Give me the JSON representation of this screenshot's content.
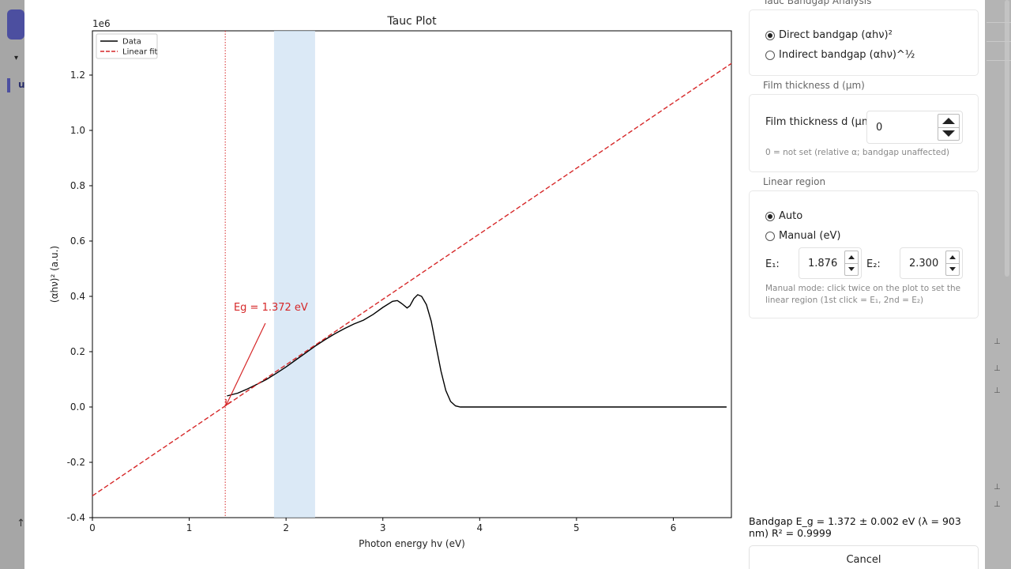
{
  "background": {
    "tab_text": "u",
    "caret": "▾",
    "up_arrow": "↑",
    "right_ticks": [
      "⊥",
      "⊥",
      "⊥",
      "⊥",
      "⊥"
    ]
  },
  "chart_data": {
    "type": "line",
    "title": "Tauc Plot",
    "xlabel": "Photon energy hv (eV)",
    "ylabel": "(αhν)² (a.u.)",
    "y_multiplier": "1e6",
    "xlim": [
      0,
      6.6
    ],
    "ylim": [
      -0.4,
      1.36
    ],
    "x_ticks": [
      0,
      1,
      2,
      3,
      4,
      5,
      6
    ],
    "y_ticks": [
      -0.4,
      -0.2,
      0.0,
      0.2,
      0.4,
      0.6,
      0.8,
      1.0,
      1.2
    ],
    "legend": {
      "position": "top-left",
      "entries": [
        "Data",
        "Linear fit"
      ]
    },
    "series": [
      {
        "name": "Data",
        "color": "#000000",
        "style": "solid",
        "x": [
          1.39,
          1.5,
          1.6,
          1.7,
          1.8,
          1.9,
          2.0,
          2.1,
          2.2,
          2.3,
          2.4,
          2.5,
          2.6,
          2.7,
          2.8,
          2.9,
          3.0,
          3.1,
          3.15,
          3.2,
          3.25,
          3.28,
          3.32,
          3.36,
          3.4,
          3.45,
          3.5,
          3.55,
          3.6,
          3.65,
          3.7,
          3.75,
          3.8,
          3.9,
          4.0,
          5.0,
          6.0,
          6.55
        ],
        "y": [
          0.04,
          0.05,
          0.065,
          0.082,
          0.1,
          0.122,
          0.145,
          0.17,
          0.195,
          0.22,
          0.243,
          0.264,
          0.283,
          0.3,
          0.314,
          0.335,
          0.36,
          0.382,
          0.385,
          0.373,
          0.358,
          0.366,
          0.392,
          0.406,
          0.4,
          0.37,
          0.31,
          0.22,
          0.13,
          0.06,
          0.02,
          0.004,
          0.0,
          0.0,
          0.0,
          0.0,
          0.0,
          0.0
        ]
      },
      {
        "name": "Linear fit",
        "color": "#d62728",
        "style": "dashed",
        "x": [
          0,
          6.6
        ],
        "y": [
          -0.321,
          1.242
        ]
      }
    ],
    "bandgap_line": {
      "x": 1.372,
      "color": "#d62728",
      "style": "dotted"
    },
    "linear_region": {
      "x1": 1.876,
      "x2": 2.3,
      "color": "#cfe2f3"
    },
    "annotation": {
      "text": "Eg = 1.372 eV",
      "text_at": [
        1.46,
        0.36
      ],
      "arrow_to": [
        1.372,
        0.0
      ],
      "color": "#d62728"
    }
  },
  "panel": {
    "analysis_title": "Tauc Bandgap Analysis",
    "direct_label": "Direct bandgap (αhν)²",
    "indirect_label": "Indirect bandgap (αhν)^½",
    "thickness_title": "Film thickness d (µm)",
    "thickness_label": "Film thickness d (µm):",
    "thickness_value": "0",
    "thickness_hint": "0 = not set (relative α; bandgap unaffected)",
    "linear_title": "Linear region",
    "auto_label": "Auto",
    "manual_label": "Manual (eV)",
    "e1_label": "E₁:",
    "e1_value": "1.876",
    "e2_label": "E₂:",
    "e2_value": "2.300",
    "manual_hint": "Manual mode: click twice on the plot to set the linear region (1st click = E₁, 2nd = E₂)",
    "result_text": "Bandgap E_g = 1.372 ± 0.002 eV (λ = 903 nm)   R² = 0.9999",
    "cancel_label": "Cancel"
  }
}
